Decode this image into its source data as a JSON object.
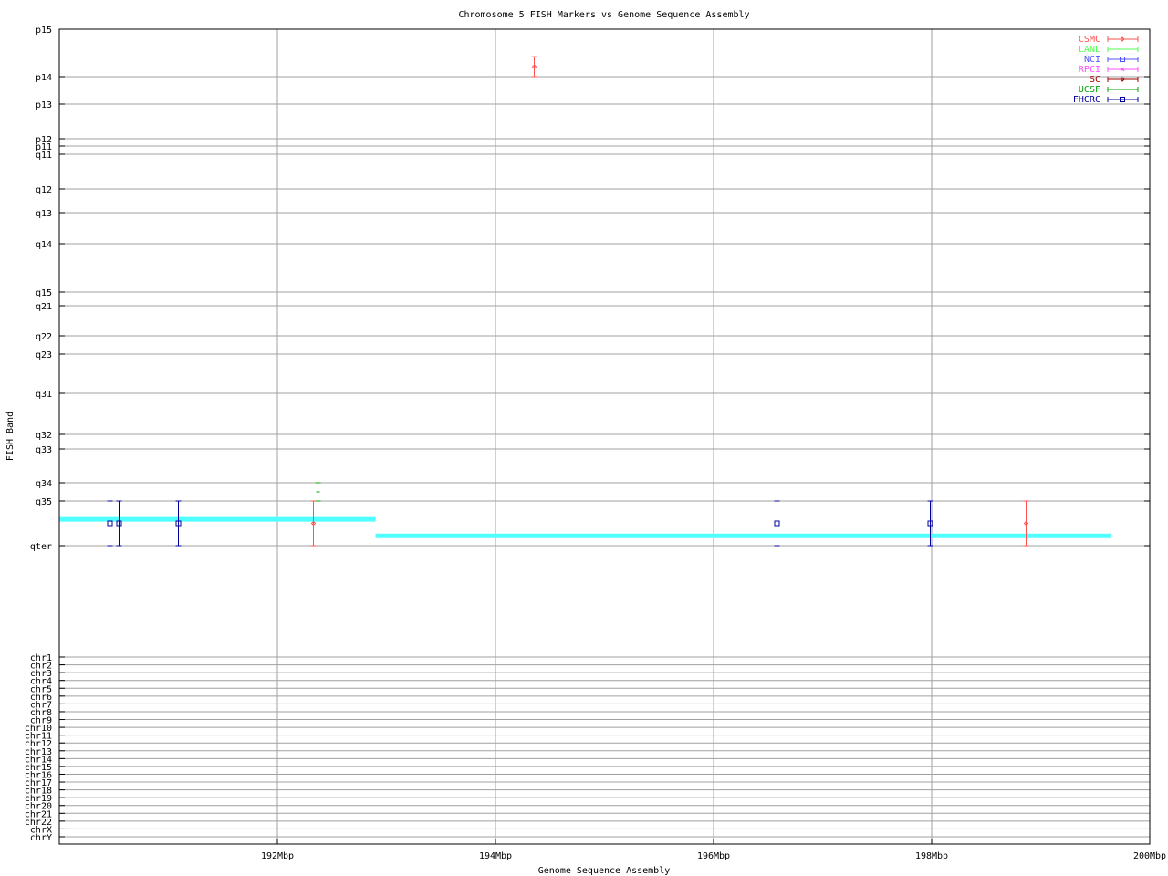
{
  "chart_data": {
    "type": "scatter",
    "title": "Chromosome 5 FISH Markers vs Genome Sequence Assembly",
    "xlabel": "Genome Sequence Assembly",
    "ylabel": "FISH Band",
    "xlim": [
      190,
      200
    ],
    "x_ticks": [
      {
        "value": 192,
        "label": "192Mbp"
      },
      {
        "value": 194,
        "label": "194Mbp"
      },
      {
        "value": 196,
        "label": "196Mbp"
      },
      {
        "value": 198,
        "label": "198Mbp"
      },
      {
        "value": 200,
        "label": "200Mbp"
      }
    ],
    "y_band_ticks": [
      "p15",
      "p14",
      "p13",
      "p12",
      "p11",
      "q11",
      "q12",
      "q13",
      "q14",
      "q15",
      "q21",
      "q22",
      "q23",
      "q31",
      "q32",
      "q33",
      "q34",
      "q35",
      "qter"
    ],
    "y_chr_ticks": [
      "chr1",
      "chr2",
      "chr3",
      "chr4",
      "chr5",
      "chr6",
      "chr7",
      "chr8",
      "chr9",
      "chr10",
      "chr11",
      "chr12",
      "chr13",
      "chr14",
      "chr15",
      "chr16",
      "chr17",
      "chr18",
      "chr19",
      "chr20",
      "chr21",
      "chr22",
      "chrX",
      "chrY"
    ],
    "grid": true,
    "legend_position": "top-right",
    "legend": [
      {
        "name": "CSMC",
        "color": "#ff5050",
        "marker": "diamond"
      },
      {
        "name": "LANL",
        "color": "#50ff50",
        "marker": "tick"
      },
      {
        "name": "NCI",
        "color": "#5050ff",
        "marker": "square"
      },
      {
        "name": "RPCI",
        "color": "#ff50ff",
        "marker": "x"
      },
      {
        "name": "SC",
        "color": "#a00000",
        "marker": "diamond"
      },
      {
        "name": "UCSF",
        "color": "#00a000",
        "marker": "tick"
      },
      {
        "name": "FHCRC",
        "color": "#0000a0",
        "marker": "square"
      }
    ],
    "points": [
      {
        "series": "FHCRC",
        "x": 190.46,
        "y": 17.5,
        "y_low": 18,
        "y_high": 17
      },
      {
        "series": "FHCRC",
        "x": 190.54,
        "y": 17.5,
        "y_low": 18,
        "y_high": 17
      },
      {
        "series": "FHCRC",
        "x": 191.09,
        "y": 17.5,
        "y_low": 18,
        "y_high": 17
      },
      {
        "series": "CSMC",
        "x": 192.33,
        "y": 17.5,
        "y_low": 18,
        "y_high": 17
      },
      {
        "series": "UCSF",
        "x": 192.37,
        "y": 16.5,
        "y_low": 17,
        "y_high": 16
      },
      {
        "series": "CSMC",
        "x": 194.35,
        "y": 0.79,
        "y_low": 1,
        "y_high": 0.58
      },
      {
        "series": "FHCRC",
        "x": 196.58,
        "y": 17.5,
        "y_low": 18,
        "y_high": 17
      },
      {
        "series": "FHCRC",
        "x": 197.98,
        "y": 17.5,
        "y_low": 18,
        "y_high": 17
      },
      {
        "series": "CSMC",
        "x": 198.86,
        "y": 17.5,
        "y_low": 18,
        "y_high": 17
      }
    ],
    "assembly_segments": {
      "color": "#50ffff",
      "segments": [
        {
          "x_start": 190.0,
          "x_end": 192.9,
          "y": 17.41
        },
        {
          "x_start": 192.9,
          "x_end": 199.65,
          "y": 17.78
        }
      ]
    }
  }
}
